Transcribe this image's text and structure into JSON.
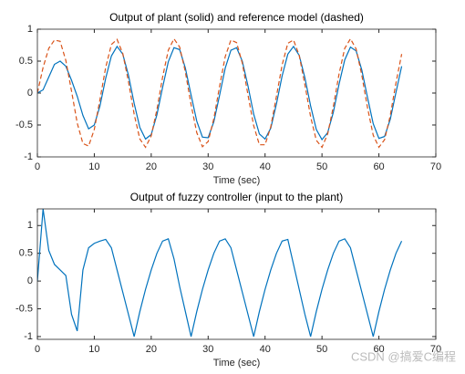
{
  "chart_data": [
    {
      "type": "line",
      "title": "Output of plant (solid) and reference model (dashed)",
      "x_label": "Time (sec)",
      "x": [
        0,
        1,
        2,
        3,
        4,
        5,
        6,
        7,
        8,
        9,
        10,
        11,
        12,
        13,
        14,
        15,
        16,
        17,
        18,
        19,
        20,
        21,
        22,
        23,
        24,
        25,
        26,
        27,
        28,
        29,
        30,
        31,
        32,
        33,
        34,
        35,
        36,
        37,
        38,
        39,
        40,
        41,
        42,
        43,
        44,
        45,
        46,
        47,
        48,
        49,
        50,
        51,
        52,
        53,
        54,
        55,
        56,
        57,
        58,
        59,
        60,
        61,
        62,
        63,
        64
      ],
      "series": [
        {
          "name": "plant",
          "color": "#0072bd",
          "style": "solid",
          "values": [
            0,
            0.05,
            0.25,
            0.45,
            0.5,
            0.42,
            0.2,
            -0.05,
            -0.35,
            -0.56,
            -0.5,
            -0.2,
            0.23,
            0.58,
            0.73,
            0.61,
            0.28,
            -0.16,
            -0.54,
            -0.72,
            -0.65,
            -0.34,
            0.09,
            0.49,
            0.71,
            0.68,
            0.39,
            -0.03,
            -0.44,
            -0.69,
            -0.7,
            -0.45,
            -0.04,
            0.39,
            0.67,
            0.71,
            0.5,
            0.11,
            -0.33,
            -0.64,
            -0.72,
            -0.55,
            -0.17,
            0.27,
            0.61,
            0.73,
            0.59,
            0.24,
            -0.2,
            -0.57,
            -0.73,
            -0.62,
            -0.3,
            0.14,
            0.52,
            0.72,
            0.66,
            0.36,
            -0.07,
            -0.48,
            -0.71,
            -0.68,
            -0.41,
            0.01,
            0.42
          ]
        },
        {
          "name": "reference model",
          "color": "#d95319",
          "style": "dashed",
          "values": [
            0,
            0.4,
            0.7,
            0.83,
            0.81,
            0.51,
            0.03,
            -0.47,
            -0.79,
            -0.83,
            -0.57,
            -0.1,
            0.4,
            0.76,
            0.84,
            0.62,
            0.18,
            -0.33,
            -0.72,
            -0.85,
            -0.67,
            -0.26,
            0.25,
            0.67,
            0.85,
            0.72,
            0.33,
            -0.18,
            -0.62,
            -0.84,
            -0.76,
            -0.4,
            0.1,
            0.57,
            0.83,
            0.79,
            0.47,
            -0.03,
            -0.51,
            -0.81,
            -0.81,
            -0.53,
            -0.05,
            0.44,
            0.78,
            0.83,
            0.59,
            0.13,
            -0.37,
            -0.74,
            -0.85,
            -0.64,
            -0.21,
            0.3,
            0.7,
            0.85,
            0.69,
            0.28,
            -0.23,
            -0.66,
            -0.85,
            -0.73,
            -0.35,
            0.16,
            0.61
          ]
        }
      ],
      "xlim": [
        0,
        70
      ],
      "xticks": [
        0,
        10,
        20,
        30,
        40,
        50,
        60,
        70
      ],
      "ylim": [
        -1,
        1
      ],
      "yticks": [
        -1,
        -0.5,
        0,
        0.5,
        1
      ]
    },
    {
      "type": "line",
      "title": "Output of fuzzy controller (input to the plant)",
      "x_label": "Time (sec)",
      "x": [
        0,
        1,
        2,
        3,
        4,
        5,
        6,
        7,
        8,
        9,
        10,
        11,
        12,
        13,
        14,
        15,
        16,
        17,
        18,
        19,
        20,
        21,
        22,
        23,
        24,
        25,
        26,
        27,
        28,
        29,
        30,
        31,
        32,
        33,
        34,
        35,
        36,
        37,
        38,
        39,
        40,
        41,
        42,
        43,
        44,
        45,
        46,
        47,
        48,
        49,
        50,
        51,
        52,
        53,
        54,
        55,
        56,
        57,
        58,
        59,
        60,
        61,
        62,
        63,
        64
      ],
      "series": [
        {
          "name": "controller",
          "color": "#0072bd",
          "style": "solid",
          "values": [
            0,
            1.3,
            0.55,
            0.3,
            0.2,
            0.1,
            -0.6,
            -0.9,
            0.2,
            0.6,
            0.68,
            0.72,
            0.75,
            0.6,
            0.2,
            -0.2,
            -0.6,
            -1.0,
            -0.55,
            -0.15,
            0.2,
            0.5,
            0.72,
            0.76,
            0.4,
            -0.1,
            -0.55,
            -1.0,
            -0.55,
            -0.15,
            0.2,
            0.5,
            0.72,
            0.76,
            0.6,
            0.2,
            -0.2,
            -0.6,
            -1.0,
            -0.55,
            -0.15,
            0.2,
            0.5,
            0.72,
            0.75,
            0.3,
            -0.15,
            -0.6,
            -1.0,
            -0.55,
            -0.15,
            0.2,
            0.5,
            0.72,
            0.76,
            0.6,
            0.2,
            -0.2,
            -0.6,
            -1.0,
            -0.55,
            -0.15,
            0.2,
            0.5,
            0.72
          ]
        }
      ],
      "xlim": [
        0,
        70
      ],
      "xticks": [
        0,
        10,
        20,
        30,
        40,
        50,
        60,
        70
      ],
      "ylim": [
        -1.05,
        1.3
      ],
      "yticks": [
        -1,
        -0.5,
        0,
        0.5,
        1
      ]
    }
  ],
  "watermark": "CSDN @搞爱C编程"
}
